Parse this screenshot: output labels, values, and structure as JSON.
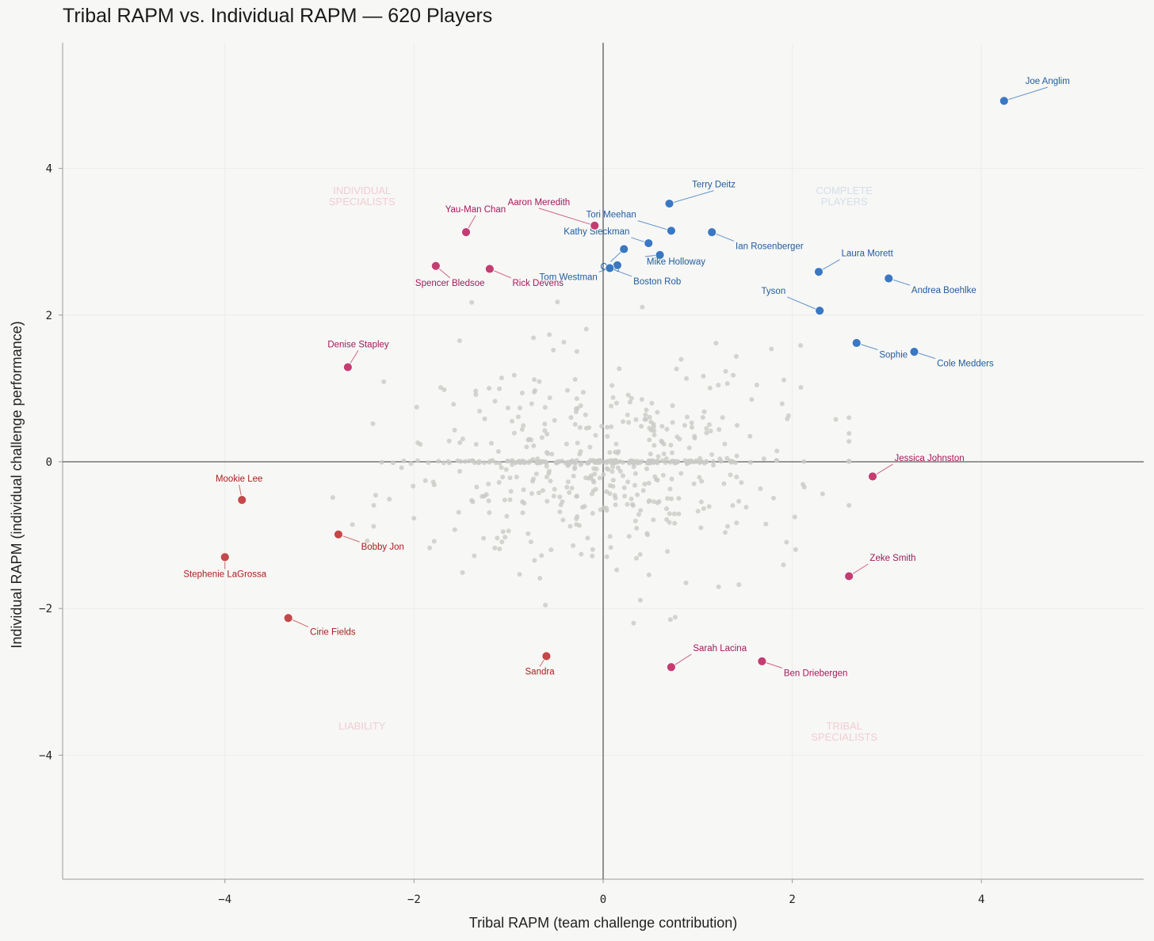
{
  "title": "Tribal RAPM vs. Individual RAPM — 620 Players",
  "chart_data": {
    "type": "scatter",
    "title": "Tribal RAPM vs. Individual RAPM — 620 Players",
    "xlabel": "Tribal RAPM (team challenge contribution)",
    "ylabel": "Individual RAPM (individual challenge performance)",
    "xlim": [
      -5.7,
      5.7
    ],
    "ylim": [
      -5.7,
      5.7
    ],
    "xticks": [
      -4,
      -2,
      0,
      2,
      4
    ],
    "yticks": [
      -4,
      -2,
      0,
      2,
      4
    ],
    "xtick_labels": [
      "−4",
      "−2",
      "0",
      "2",
      "4"
    ],
    "ytick_labels": [
      "−4",
      "−2",
      "0",
      "2",
      "4"
    ],
    "grid": true,
    "reference_lines": {
      "x": 0,
      "y": 0
    },
    "colors": {
      "background": "#f7f7f5",
      "axis_line": "#777777",
      "background_points": "#c9c9c7",
      "complete": "#3a78c2",
      "complete_text": "#1f5c9e",
      "specialist": "#c43d72",
      "specialist_text": "#a3195b",
      "liability": "#c44848",
      "liability_text": "#a61f1f",
      "quadrant_pink": "#f1cdd5",
      "quadrant_blue": "#d5deea"
    },
    "quadrant_labels": [
      {
        "lines": [
          "INDIVIDUAL",
          "SPECIALISTS"
        ],
        "x": -2.55,
        "y": 3.65,
        "color": "#f1cdd5"
      },
      {
        "lines": [
          "COMPLETE",
          "PLAYERS"
        ],
        "x": 2.55,
        "y": 3.65,
        "color": "#d5deea"
      },
      {
        "lines": [
          "LIABILITY"
        ],
        "x": -2.55,
        "y": -3.65,
        "color": "#f1cdd5"
      },
      {
        "lines": [
          "TRIBAL",
          "SPECIALISTS"
        ],
        "x": 2.55,
        "y": -3.65,
        "color": "#f1cdd5"
      }
    ],
    "highlighted": [
      {
        "name": "Joe Anglim",
        "x": 4.24,
        "y": 4.92,
        "group": "complete",
        "lx": 4.7,
        "ly": 5.15,
        "anchor": "middle"
      },
      {
        "name": "Terry Deitz",
        "x": 0.7,
        "y": 3.52,
        "group": "complete",
        "lx": 1.17,
        "ly": 3.74,
        "anchor": "middle"
      },
      {
        "name": "Tori Meehan",
        "x": 0.72,
        "y": 3.15,
        "group": "complete",
        "lx": 0.35,
        "ly": 3.33,
        "anchor": "end"
      },
      {
        "name": "Ian Rosenberger",
        "x": 1.15,
        "y": 3.13,
        "group": "complete",
        "lx": 1.4,
        "ly": 2.9,
        "anchor": "start"
      },
      {
        "name": "Kathy Sleckman",
        "x": 0.48,
        "y": 2.98,
        "group": "complete",
        "lx": 0.28,
        "ly": 3.1,
        "anchor": "end"
      },
      {
        "name": "Mike Holloway",
        "x": 0.6,
        "y": 2.82,
        "group": "complete",
        "lx": 0.46,
        "ly": 2.69,
        "anchor": "start"
      },
      {
        "name": "Ozzy",
        "x": 0.22,
        "y": 2.9,
        "group": "complete",
        "lx": 0.08,
        "ly": 2.62,
        "anchor": "middle"
      },
      {
        "name": "Tom Westman",
        "x": 0.15,
        "y": 2.68,
        "group": "complete",
        "lx": -0.06,
        "ly": 2.48,
        "anchor": "end"
      },
      {
        "name": "Boston Rob",
        "x": 0.07,
        "y": 2.64,
        "group": "complete",
        "lx": 0.32,
        "ly": 2.42,
        "anchor": "start"
      },
      {
        "name": "Laura Morett",
        "x": 2.28,
        "y": 2.59,
        "group": "complete",
        "lx": 2.52,
        "ly": 2.8,
        "anchor": "start"
      },
      {
        "name": "Andrea Boehlke",
        "x": 3.02,
        "y": 2.5,
        "group": "complete",
        "lx": 3.26,
        "ly": 2.3,
        "anchor": "start"
      },
      {
        "name": "Tyson",
        "x": 2.29,
        "y": 2.06,
        "group": "complete",
        "lx": 1.93,
        "ly": 2.29,
        "anchor": "end"
      },
      {
        "name": "Sophie",
        "x": 2.68,
        "y": 1.62,
        "group": "complete",
        "lx": 2.92,
        "ly": 1.42,
        "anchor": "start"
      },
      {
        "name": "Cole Medders",
        "x": 3.29,
        "y": 1.5,
        "group": "complete",
        "lx": 3.53,
        "ly": 1.3,
        "anchor": "start"
      },
      {
        "name": "Aaron Meredith",
        "x": -0.09,
        "y": 3.22,
        "group": "specialist",
        "lx": -0.68,
        "ly": 3.5,
        "anchor": "middle"
      },
      {
        "name": "Yau-Man Chan",
        "x": -1.45,
        "y": 3.13,
        "group": "specialist",
        "lx": -1.35,
        "ly": 3.4,
        "anchor": "middle"
      },
      {
        "name": "Spencer Bledsoe",
        "x": -1.77,
        "y": 2.67,
        "group": "specialist",
        "lx": -1.62,
        "ly": 2.4,
        "anchor": "middle"
      },
      {
        "name": "Rick Devens",
        "x": -1.2,
        "y": 2.63,
        "group": "specialist",
        "lx": -0.96,
        "ly": 2.4,
        "anchor": "start"
      },
      {
        "name": "Denise Stapley",
        "x": -2.7,
        "y": 1.29,
        "group": "specialist",
        "lx": -2.59,
        "ly": 1.56,
        "anchor": "middle"
      },
      {
        "name": "Jessica Johnston",
        "x": 2.85,
        "y": -0.2,
        "group": "specialist",
        "lx": 3.08,
        "ly": 0.01,
        "anchor": "start"
      },
      {
        "name": "Zeke Smith",
        "x": 2.6,
        "y": -1.56,
        "group": "specialist",
        "lx": 2.82,
        "ly": -1.35,
        "anchor": "start"
      },
      {
        "name": "Sarah Lacina",
        "x": 0.72,
        "y": -2.8,
        "group": "specialist",
        "lx": 0.95,
        "ly": -2.58,
        "anchor": "start"
      },
      {
        "name": "Ben Driebergen",
        "x": 1.68,
        "y": -2.72,
        "group": "specialist",
        "lx": 1.91,
        "ly": -2.92,
        "anchor": "start"
      },
      {
        "name": "Mookie Lee",
        "x": -3.82,
        "y": -0.52,
        "group": "liability",
        "lx": -3.85,
        "ly": -0.27,
        "anchor": "middle"
      },
      {
        "name": "Bobby Jon",
        "x": -2.8,
        "y": -0.99,
        "group": "liability",
        "lx": -2.56,
        "ly": -1.2,
        "anchor": "start"
      },
      {
        "name": "Stephenie LaGrossa",
        "x": -4.0,
        "y": -1.3,
        "group": "liability",
        "lx": -4.0,
        "ly": -1.57,
        "anchor": "middle"
      },
      {
        "name": "Cirie Fields",
        "x": -3.33,
        "y": -2.13,
        "group": "liability",
        "lx": -3.1,
        "ly": -2.36,
        "anchor": "start"
      },
      {
        "name": "Sandra",
        "x": -0.6,
        "y": -2.65,
        "group": "liability",
        "lx": -0.67,
        "ly": -2.9,
        "anchor": "middle"
      }
    ]
  }
}
